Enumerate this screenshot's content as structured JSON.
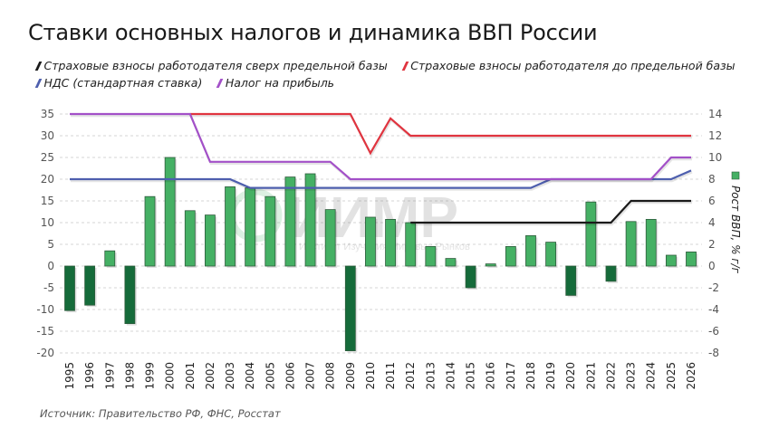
{
  "title": "Ставки основных налогов и динамика ВВП России",
  "legend": [
    {
      "label": "Страховые взносы работодателя сверх предельной базы",
      "color": "#1a1a1a"
    },
    {
      "label": "Страховые взносы работодателя до предельной базы",
      "color": "#e0343f"
    },
    {
      "label": "НДС (стандартная ставка)",
      "color": "#4e5fae"
    },
    {
      "label": "Налог на прибыль",
      "color": "#a350c8"
    }
  ],
  "source": "Источник: Правительство РФ, ФНС, Росстат",
  "watermark": {
    "logo": "ИИМР",
    "text": "Институт Изучения Мировых Рынков"
  },
  "colors": {
    "bar_positive": "#45b064",
    "bar_negative": "#156b3a",
    "bar_border": "#2e5c3c",
    "grid": "#c8c8c8"
  },
  "chart_data": {
    "type": "bar+line",
    "title": "Ставки основных налогов и динамика ВВП России",
    "categories": [
      "1995",
      "1996",
      "1997",
      "1998",
      "1999",
      "2000",
      "2001",
      "2002",
      "2003",
      "2004",
      "2005",
      "2006",
      "2007",
      "2008",
      "2009",
      "2010",
      "2011",
      "2012",
      "2013",
      "2014",
      "2015",
      "2016",
      "2017",
      "2018",
      "2019",
      "2020",
      "2021",
      "2022",
      "2023",
      "2024",
      "2025",
      "2026"
    ],
    "left_axis": {
      "label": "",
      "ylim": [
        -20,
        35
      ],
      "ticks": [
        35,
        30,
        25,
        20,
        15,
        10,
        5,
        0,
        -5,
        -10,
        -15,
        -20
      ]
    },
    "right_axis": {
      "label": "Рост ВВП, % г/г",
      "ylim": [
        -8,
        14
      ],
      "ticks": [
        14,
        12,
        10,
        8,
        6,
        4,
        2,
        0,
        -2,
        -4,
        -6,
        -8
      ]
    },
    "grid": true,
    "legend_position": "top",
    "bars": {
      "name": "Рост ВВП, % г/г",
      "axis": "right",
      "values": [
        -4.1,
        -3.6,
        1.4,
        -5.3,
        6.4,
        10.0,
        5.1,
        4.7,
        7.3,
        7.2,
        6.4,
        8.2,
        8.5,
        5.2,
        -7.8,
        4.5,
        4.3,
        4.0,
        1.8,
        0.7,
        -2.0,
        0.2,
        1.8,
        2.8,
        2.2,
        -2.7,
        5.9,
        -1.4,
        4.1,
        4.3,
        1.0,
        1.3
      ]
    },
    "series": [
      {
        "name": "Страховые взносы работодателя сверх предельной базы",
        "axis": "left",
        "color": "#1a1a1a",
        "values": [
          null,
          null,
          null,
          null,
          null,
          null,
          null,
          null,
          null,
          null,
          null,
          null,
          null,
          null,
          null,
          null,
          null,
          10,
          10,
          10,
          10,
          10,
          10,
          10,
          10,
          10,
          10,
          10,
          15,
          15,
          15,
          15
        ]
      },
      {
        "name": "Страховые взносы работодателя до предельной базы",
        "axis": "left",
        "color": "#e0343f",
        "values": [
          null,
          null,
          null,
          null,
          null,
          null,
          35,
          35,
          35,
          35,
          35,
          35,
          35,
          35,
          35,
          26,
          34,
          30,
          30,
          30,
          30,
          30,
          30,
          30,
          30,
          30,
          30,
          30,
          30,
          30,
          30,
          30
        ]
      },
      {
        "name": "НДС (стандартная ставка)",
        "axis": "left",
        "color": "#4e5fae",
        "values": [
          20,
          20,
          20,
          20,
          20,
          20,
          20,
          20,
          20,
          18,
          18,
          18,
          18,
          18,
          18,
          18,
          18,
          18,
          18,
          18,
          18,
          18,
          18,
          18,
          20,
          20,
          20,
          20,
          20,
          20,
          20,
          22
        ]
      },
      {
        "name": "Налог на прибыль",
        "axis": "left",
        "color": "#a350c8",
        "values": [
          35,
          35,
          35,
          35,
          35,
          35,
          35,
          24,
          24,
          24,
          24,
          24,
          24,
          24,
          20,
          20,
          20,
          20,
          20,
          20,
          20,
          20,
          20,
          20,
          20,
          20,
          20,
          20,
          20,
          20,
          25,
          25
        ]
      }
    ]
  }
}
